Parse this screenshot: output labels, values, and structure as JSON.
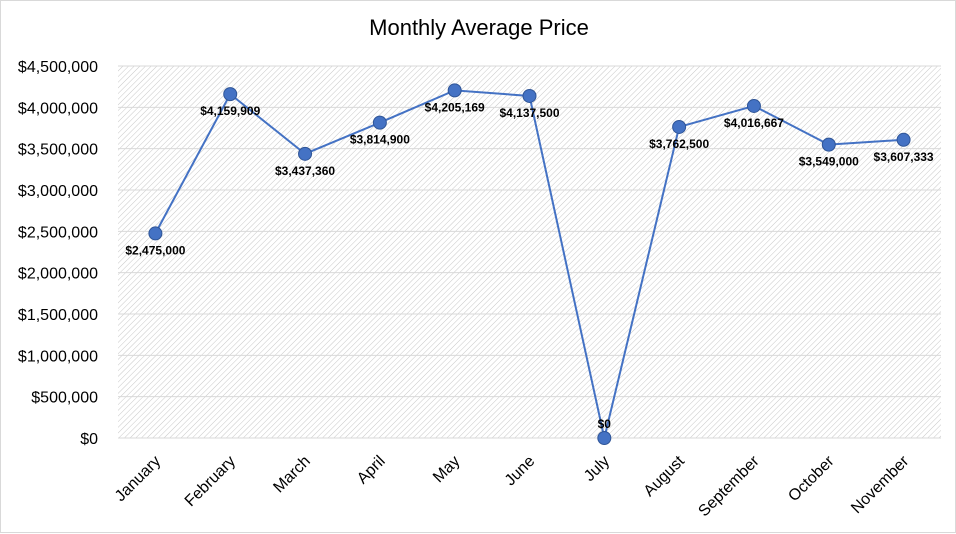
{
  "chart_data": {
    "type": "line",
    "title": "Monthly Average Price",
    "xlabel": "",
    "ylabel": "",
    "categories": [
      "January",
      "February",
      "March",
      "April",
      "May",
      "June",
      "July",
      "August",
      "September",
      "October",
      "November"
    ],
    "series": [
      {
        "values": [
          2475000,
          4159909,
          3437360,
          3814900,
          4205169,
          4137500,
          0,
          3762500,
          4016667,
          3549000,
          3607333
        ],
        "data_labels": [
          "$2,475,000",
          "$4,159,909",
          "$3,437,360",
          "$3,814,900",
          "$4,205,169",
          "$4,137,500",
          "$0",
          "$3,762,500",
          "$4,016,667",
          "$3,549,000",
          "$3,607,333"
        ]
      }
    ],
    "ylim": [
      0,
      4500000
    ],
    "y_ticks": [
      0,
      500000,
      1000000,
      1500000,
      2000000,
      2500000,
      3000000,
      3500000,
      4000000,
      4500000
    ],
    "y_tick_labels": [
      "$0",
      "$500,000",
      "$1,000,000",
      "$1,500,000",
      "$2,000,000",
      "$2,500,000",
      "$3,000,000",
      "$3,500,000",
      "$4,000,000",
      "$4,500,000"
    ],
    "grid": true,
    "legend": "none",
    "colors": {
      "line": "#4472c4",
      "marker": "#4472c4",
      "marker_edge": "#2f5597",
      "grid": "#d9d9d9"
    }
  }
}
